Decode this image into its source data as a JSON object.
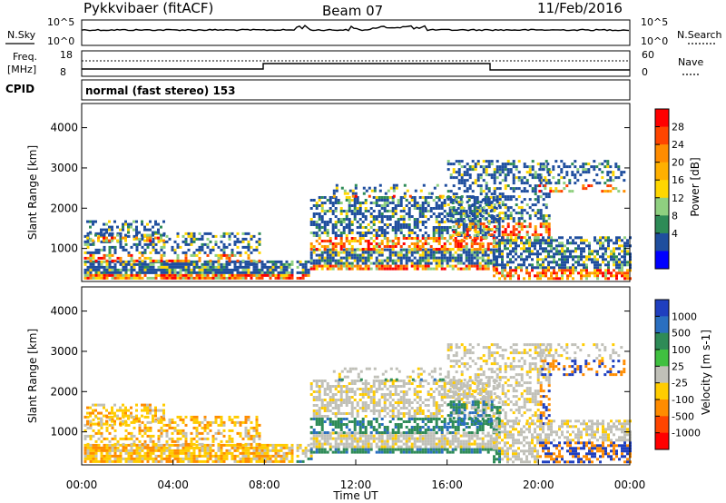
{
  "header": {
    "station": "Pykkvibaer (fitACF)",
    "beam": "Beam 07",
    "date": "11/Feb/2016"
  },
  "noise_panel": {
    "left_label": "N.Sky",
    "right_label": "N.Search",
    "left_ticks": [
      "10^5",
      "10^0"
    ],
    "right_ticks": [
      "10^5",
      "10^0"
    ]
  },
  "freq_panel": {
    "left_label_line1": "Freq.",
    "left_label_line2": "[MHz]",
    "right_label": "Nave",
    "left_ticks": [
      "18",
      "8"
    ],
    "right_ticks": [
      "60",
      "0"
    ]
  },
  "cpid": {
    "label": "CPID",
    "value": "normal (fast stereo) 153"
  },
  "time_axis": {
    "label": "Time UT",
    "ticks": [
      "00:00",
      "04:00",
      "08:00",
      "12:00",
      "16:00",
      "20:00",
      "00:00"
    ]
  },
  "chart_data": [
    {
      "type": "heatmap",
      "quantity": "Power",
      "ylabel": "Slant Range [km]",
      "yticks": [
        1000,
        2000,
        3000,
        4000
      ],
      "ylim": [
        180,
        4600
      ],
      "xlim_hours": [
        0,
        24
      ],
      "colorbar_label": "Power [dB]",
      "colorbar_ticks": [
        "28",
        "24",
        "20",
        "16",
        "12",
        "8",
        "4"
      ],
      "colorbar_colors": [
        "#ff0000",
        "#ff4500",
        "#ff8c00",
        "#ffb000",
        "#ffd700",
        "#8fd080",
        "#2e8b57",
        "#1f4e9e",
        "#0000ff"
      ]
    },
    {
      "type": "heatmap",
      "quantity": "Velocity",
      "ylabel": "Slant Range [km]",
      "yticks": [
        1000,
        2000,
        3000,
        4000
      ],
      "ylim": [
        180,
        4600
      ],
      "xlim_hours": [
        0,
        24
      ],
      "colorbar_label": "Velocity [m s-1]",
      "colorbar_ticks": [
        "1000",
        "500",
        "100",
        "25",
        "-25",
        "-100",
        "-500",
        "-1000"
      ],
      "colorbar_colors": [
        "#1f3fbf",
        "#2a6fc0",
        "#2e8b57",
        "#40c040",
        "#c0c0b8",
        "#ffcc00",
        "#ff8c00",
        "#ff4500",
        "#ff0000"
      ]
    }
  ]
}
